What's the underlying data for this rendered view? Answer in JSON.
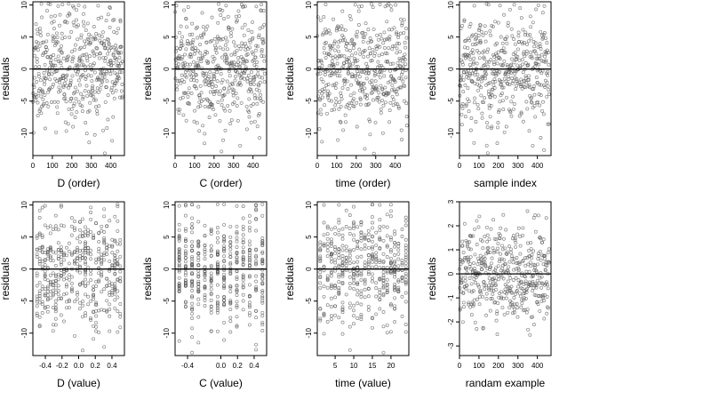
{
  "style": {
    "point_color": "#555555",
    "axis_color": "#000000",
    "background": "#ffffff"
  },
  "chart_data": [
    {
      "id": "d-order",
      "type": "scatter",
      "xlabel": "D (order)",
      "ylabel": "residuals",
      "xlim": [
        0,
        470
      ],
      "ylim": [
        -13.5,
        10.5
      ],
      "xticks": [
        0,
        100,
        200,
        300,
        400
      ],
      "xtick_labels": [
        "0",
        "100",
        "200",
        "300",
        "400"
      ],
      "yticks": [
        -10,
        -5,
        0,
        5,
        10
      ],
      "ytick_labels": [
        "-10",
        "-5",
        "0",
        "5",
        "10"
      ],
      "zero_line": true,
      "n_points": 460,
      "x_kind": "index",
      "y_sd": 4.5,
      "seed": 11
    },
    {
      "id": "c-order",
      "type": "scatter",
      "xlabel": "C (order)",
      "ylabel": "residuals",
      "xlim": [
        0,
        470
      ],
      "ylim": [
        -13.5,
        10.5
      ],
      "xticks": [
        0,
        100,
        200,
        300,
        400
      ],
      "xtick_labels": [
        "0",
        "100",
        "200",
        "300",
        "400"
      ],
      "yticks": [
        -10,
        -5,
        0,
        5,
        10
      ],
      "ytick_labels": [
        "-10",
        "-5",
        "0",
        "5",
        "10"
      ],
      "zero_line": true,
      "n_points": 460,
      "x_kind": "index",
      "y_sd": 4.5,
      "seed": 23
    },
    {
      "id": "time-order",
      "type": "scatter",
      "xlabel": "time (order)",
      "ylabel": "residuals",
      "xlim": [
        0,
        470
      ],
      "ylim": [
        -13.5,
        10.5
      ],
      "xticks": [
        0,
        100,
        200,
        300,
        400
      ],
      "xtick_labels": [
        "0",
        "100",
        "200",
        "300",
        "400"
      ],
      "yticks": [
        -10,
        -5,
        0,
        5,
        10
      ],
      "ytick_labels": [
        "-10",
        "-5",
        "0",
        "5",
        "10"
      ],
      "zero_line": true,
      "n_points": 460,
      "x_kind": "index",
      "y_sd": 4.5,
      "seed": 37
    },
    {
      "id": "sample-index",
      "type": "scatter",
      "xlabel": "sample index",
      "ylabel": "residuals",
      "xlim": [
        0,
        470
      ],
      "ylim": [
        -13.5,
        10.5
      ],
      "xticks": [
        0,
        100,
        200,
        300,
        400
      ],
      "xtick_labels": [
        "0",
        "100",
        "200",
        "300",
        "400"
      ],
      "yticks": [
        -10,
        -5,
        0,
        5,
        10
      ],
      "ytick_labels": [
        "-10",
        "-5",
        "0",
        "5",
        "10"
      ],
      "zero_line": true,
      "n_points": 460,
      "x_kind": "index",
      "y_sd": 4.5,
      "seed": 41
    },
    {
      "id": "d-value",
      "type": "scatter",
      "xlabel": "D (value)",
      "ylabel": "residuals",
      "xlim": [
        -0.55,
        0.55
      ],
      "ylim": [
        -13.5,
        10.5
      ],
      "xticks": [
        -0.4,
        -0.2,
        0.0,
        0.2,
        0.4
      ],
      "xtick_labels": [
        "-0.4",
        "-0.2",
        "0.0",
        "0.2",
        "0.4"
      ],
      "yticks": [
        -10,
        -5,
        0,
        5,
        10
      ],
      "ytick_labels": [
        "-10",
        "-5",
        "0",
        "5",
        "10"
      ],
      "zero_line": true,
      "n_points": 460,
      "x_kind": "discrete",
      "x_levels": 32,
      "x_range": [
        -0.5,
        0.5
      ],
      "y_sd": 4.5,
      "seed": 53
    },
    {
      "id": "c-value",
      "type": "scatter",
      "xlabel": "C (value)",
      "ylabel": "residuals",
      "xlim": [
        -0.55,
        0.55
      ],
      "ylim": [
        -13.5,
        10.5
      ],
      "xticks": [
        -0.4,
        0.0,
        0.2,
        0.4
      ],
      "xtick_labels": [
        "-0.4",
        "0.0",
        "0.2",
        "0.4"
      ],
      "yticks": [
        -10,
        -5,
        0,
        5,
        10
      ],
      "ytick_labels": [
        "-10",
        "-5",
        "0",
        "5",
        "10"
      ],
      "zero_line": true,
      "n_points": 460,
      "x_kind": "discrete",
      "x_levels": 14,
      "x_range": [
        -0.5,
        0.5
      ],
      "y_sd": 4.5,
      "seed": 67
    },
    {
      "id": "time-value",
      "type": "scatter",
      "xlabel": "time (value)",
      "ylabel": "residuals",
      "xlim": [
        0.2,
        24.8
      ],
      "ylim": [
        -13.5,
        10.5
      ],
      "xticks": [
        5,
        10,
        15,
        20
      ],
      "xtick_labels": [
        "5",
        "10",
        "15",
        "20"
      ],
      "yticks": [
        -10,
        -5,
        0,
        5,
        10
      ],
      "ytick_labels": [
        "-10",
        "-5",
        "0",
        "5",
        "10"
      ],
      "zero_line": true,
      "n_points": 460,
      "x_kind": "discrete",
      "x_levels": 24,
      "x_range": [
        1,
        24
      ],
      "y_sd": 4.5,
      "seed": 79
    },
    {
      "id": "random-example",
      "type": "scatter",
      "xlabel": "randam example",
      "ylabel": "residuals",
      "xlim": [
        0,
        470
      ],
      "ylim": [
        -3.4,
        3.0
      ],
      "xticks": [
        0,
        100,
        200,
        300,
        400
      ],
      "xtick_labels": [
        "0",
        "100",
        "200",
        "300",
        "400"
      ],
      "yticks": [
        -3,
        -2,
        -1,
        0,
        1,
        2,
        3
      ],
      "ytick_labels": [
        "-3",
        "-2",
        "-1",
        "0",
        "1",
        "2",
        "3"
      ],
      "zero_line": true,
      "n_points": 460,
      "x_kind": "index",
      "y_sd": 1.0,
      "seed": 97
    }
  ]
}
